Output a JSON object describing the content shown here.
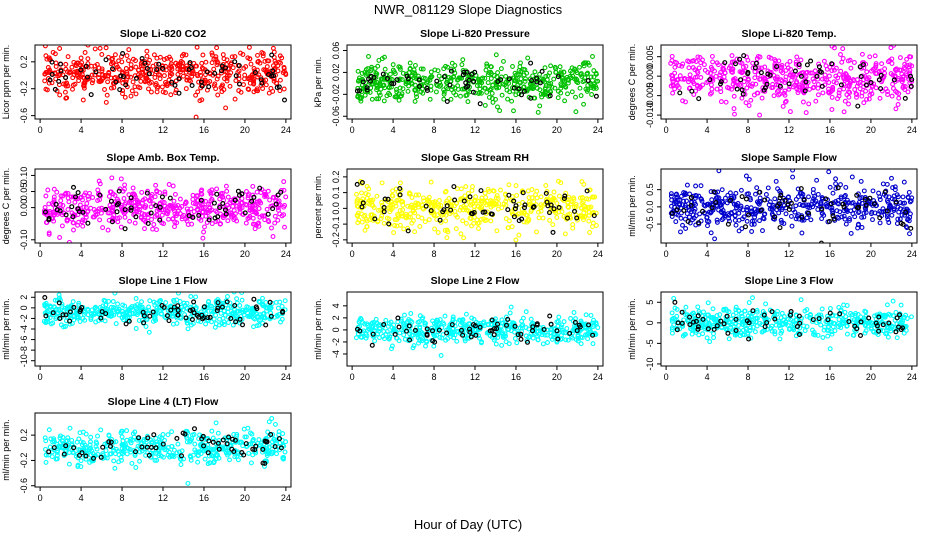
{
  "figure": {
    "title": "NWR_081129  Slope Diagnostics",
    "xlabel": "Hour of Day (UTC)",
    "overlay_color": "#000000"
  },
  "chart_data": [
    {
      "type": "scatter",
      "title": "Slope Li-820 CO2",
      "ylabel": "Licor ppm per min.",
      "xlim": [
        -0.5,
        24.5
      ],
      "xticks": [
        0,
        4,
        8,
        12,
        16,
        20,
        24
      ],
      "ylim": [
        -0.65,
        0.45
      ],
      "yticks": [
        -0.6,
        -0.2,
        0.2
      ],
      "ytick_labels": [
        "-0.6",
        "-0.2",
        "0.2"
      ],
      "color": "#ff0000",
      "center": 0.02,
      "spread": 0.17,
      "n_points": 520,
      "n_highlight": 60,
      "seed": 11
    },
    {
      "type": "scatter",
      "title": "Slope Li-820 Pressure",
      "ylabel": "kPa per min.",
      "xlim": [
        -0.5,
        24.5
      ],
      "xticks": [
        0,
        4,
        8,
        12,
        16,
        20,
        24
      ],
      "ylim": [
        -0.065,
        0.07
      ],
      "yticks": [
        -0.06,
        -0.02,
        0.02,
        0.06
      ],
      "ytick_labels": [
        "-0.06",
        "-0.02",
        "0.02",
        "0.06"
      ],
      "color": "#00c000",
      "center": 0.0,
      "spread": 0.018,
      "n_points": 520,
      "n_highlight": 55,
      "seed": 23
    },
    {
      "type": "scatter",
      "title": "Slope Li-820 Temp.",
      "ylabel": "degrees C per min.",
      "xlim": [
        -0.5,
        24.5
      ],
      "xticks": [
        0,
        4,
        8,
        12,
        16,
        20,
        24
      ],
      "ylim": [
        -0.011,
        0.008
      ],
      "yticks": [
        -0.01,
        -0.005,
        0.0,
        0.005
      ],
      "ytick_labels": [
        "-0.010",
        "-0.005",
        "0.000",
        "0.005"
      ],
      "color": "#ff00ff",
      "center": -0.0005,
      "spread": 0.0032,
      "n_points": 520,
      "n_highlight": 55,
      "seed": 37
    },
    {
      "type": "scatter",
      "title": "Slope Amb. Box Temp.",
      "ylabel": "degrees C per min.",
      "xlim": [
        -0.5,
        24.5
      ],
      "xticks": [
        0,
        4,
        8,
        12,
        16,
        20,
        24
      ],
      "ylim": [
        -0.11,
        0.12
      ],
      "yticks": [
        -0.1,
        0.0,
        0.05,
        0.1
      ],
      "ytick_labels": [
        "-0.10",
        "0.00",
        "0.05",
        "0.10"
      ],
      "color": "#ff00ff",
      "center": 0.0,
      "spread": 0.035,
      "n_points": 520,
      "n_highlight": 65,
      "seed": 41
    },
    {
      "type": "scatter",
      "title": "Slope Gas Stream RH",
      "ylabel": "percent per min.",
      "xlim": [
        -0.5,
        24.5
      ],
      "xticks": [
        0,
        4,
        8,
        12,
        16,
        20,
        24
      ],
      "ylim": [
        -0.22,
        0.25
      ],
      "yticks": [
        -0.2,
        -0.1,
        0.0,
        0.1,
        0.2
      ],
      "ytick_labels": [
        "-0.2",
        "-0.1",
        "0.0",
        "0.1",
        "0.2"
      ],
      "color": "#ffff00",
      "center": 0.0,
      "spread": 0.07,
      "n_points": 480,
      "n_highlight": 60,
      "seed": 53
    },
    {
      "type": "scatter",
      "title": "Slope Sample Flow",
      "ylabel": "ml/min per min.",
      "xlim": [
        -0.5,
        24.5
      ],
      "xticks": [
        0,
        4,
        8,
        12,
        16,
        20,
        24
      ],
      "ylim": [
        -1.05,
        1.1
      ],
      "yticks": [
        -0.5,
        0.0,
        0.5
      ],
      "ytick_labels": [
        "-0.5",
        "0.0",
        "0.5"
      ],
      "color": "#0000cc",
      "center": 0.0,
      "spread": 0.32,
      "n_points": 500,
      "n_highlight": 60,
      "seed": 67
    },
    {
      "type": "scatter",
      "title": "Slope Line 1 Flow",
      "ylabel": "ml/min per min.",
      "xlim": [
        -0.5,
        24.5
      ],
      "xticks": [
        0,
        4,
        8,
        12,
        16,
        20,
        24
      ],
      "ylim": [
        -11,
        3
      ],
      "yticks": [
        -10,
        -8,
        -6,
        -4,
        -2,
        0,
        2
      ],
      "ytick_labels": [
        "-10",
        "-8",
        "-6",
        "-4",
        "-2",
        "0",
        "2"
      ],
      "color": "#00ffff",
      "center": -0.8,
      "spread": 1.3,
      "n_points": 480,
      "n_highlight": 65,
      "seed": 71
    },
    {
      "type": "scatter",
      "title": "Slope Line 2 Flow",
      "ylabel": "ml/min per min.",
      "xlim": [
        -0.5,
        24.5
      ],
      "xticks": [
        0,
        4,
        8,
        12,
        16,
        20,
        24
      ],
      "ylim": [
        -6,
        6.3
      ],
      "yticks": [
        -4,
        -2,
        0,
        2,
        4
      ],
      "ytick_labels": [
        "-4",
        "-2",
        "0",
        "2",
        "4"
      ],
      "color": "#00ffff",
      "center": 0.0,
      "spread": 1.2,
      "n_points": 480,
      "n_highlight": 60,
      "seed": 83
    },
    {
      "type": "scatter",
      "title": "Slope Line 3 Flow",
      "ylabel": "ml/min per min.",
      "xlim": [
        -0.5,
        24.5
      ],
      "xticks": [
        0,
        4,
        8,
        12,
        16,
        20,
        24
      ],
      "ylim": [
        -10.5,
        7.5
      ],
      "yticks": [
        -10,
        -5,
        0,
        5
      ],
      "ytick_labels": [
        "-10",
        "-5",
        "0",
        "5"
      ],
      "color": "#00ffff",
      "center": 0.0,
      "spread": 1.8,
      "n_points": 480,
      "n_highlight": 60,
      "seed": 97
    },
    {
      "type": "scatter",
      "title": "Slope Line 4 (LT) Flow",
      "ylabel": "ml/min per min.",
      "xlim": [
        -0.5,
        24.5
      ],
      "xticks": [
        0,
        4,
        8,
        12,
        16,
        20,
        24
      ],
      "ylim": [
        -0.62,
        0.55
      ],
      "yticks": [
        -0.6,
        -0.2,
        0.2
      ],
      "ytick_labels": [
        "-0.6",
        "-0.2",
        "0.2"
      ],
      "color": "#00ffff",
      "center": 0.0,
      "spread": 0.14,
      "n_points": 460,
      "n_highlight": 60,
      "seed": 113
    }
  ]
}
